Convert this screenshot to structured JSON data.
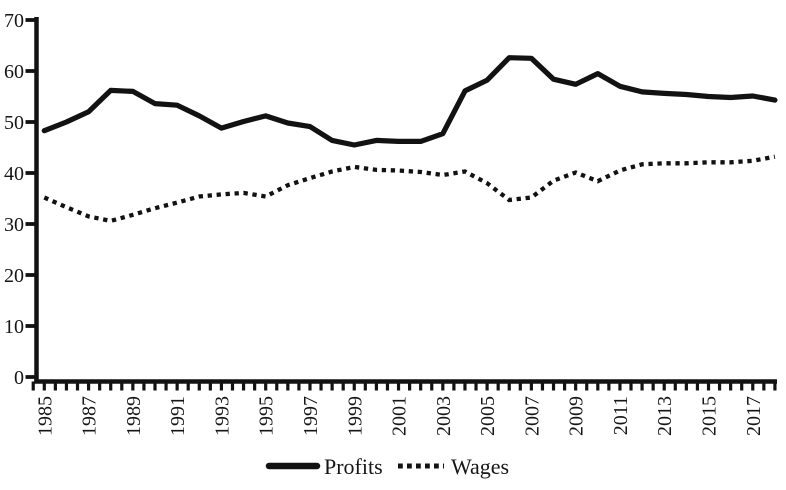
{
  "chart_data": {
    "type": "line",
    "x": [
      1985,
      1986,
      1987,
      1988,
      1989,
      1990,
      1991,
      1992,
      1993,
      1994,
      1995,
      1996,
      1997,
      1998,
      1999,
      2000,
      2001,
      2002,
      2003,
      2004,
      2005,
      2006,
      2007,
      2008,
      2009,
      2010,
      2011,
      2012,
      2013,
      2014,
      2015,
      2016,
      2017,
      2018
    ],
    "series": [
      {
        "name": "Profits",
        "style": "solid",
        "values": [
          48.3,
          50.0,
          52.0,
          56.2,
          56.0,
          53.6,
          53.3,
          51.2,
          48.8,
          50.1,
          51.2,
          49.8,
          49.1,
          46.4,
          45.5,
          46.4,
          46.2,
          46.2,
          47.7,
          56.1,
          58.2,
          62.6,
          62.5,
          58.4,
          57.4,
          59.5,
          57.0,
          55.9,
          55.6,
          55.4,
          55.0,
          54.8,
          55.1,
          54.3
        ]
      },
      {
        "name": "Wages",
        "style": "dotted",
        "values": [
          35.2,
          33.3,
          31.5,
          30.6,
          31.8,
          33.1,
          34.2,
          35.4,
          35.8,
          36.1,
          35.4,
          37.6,
          39.0,
          40.3,
          41.2,
          40.6,
          40.5,
          40.2,
          39.6,
          40.3,
          38.0,
          34.7,
          35.2,
          38.5,
          40.1,
          38.4,
          40.5,
          41.7,
          41.9,
          41.9,
          42.1,
          42.1,
          42.4,
          43.2
        ]
      }
    ],
    "title": "",
    "xlabel": "",
    "ylabel": "",
    "ylim": [
      0,
      70
    ],
    "y_ticks": [
      0,
      10,
      20,
      30,
      40,
      50,
      60,
      70
    ],
    "x_tick_labels": [
      "1985",
      "1987",
      "1989",
      "1991",
      "1993",
      "1995",
      "1997",
      "1999",
      "2001",
      "2003",
      "2005",
      "2007",
      "2009",
      "2011",
      "2013",
      "2015",
      "2017"
    ],
    "x_minor_ticks_per_year": 2,
    "grid": false,
    "legend_position": "bottom-center",
    "line_color": "#121212",
    "background_color": "#ffffff"
  }
}
